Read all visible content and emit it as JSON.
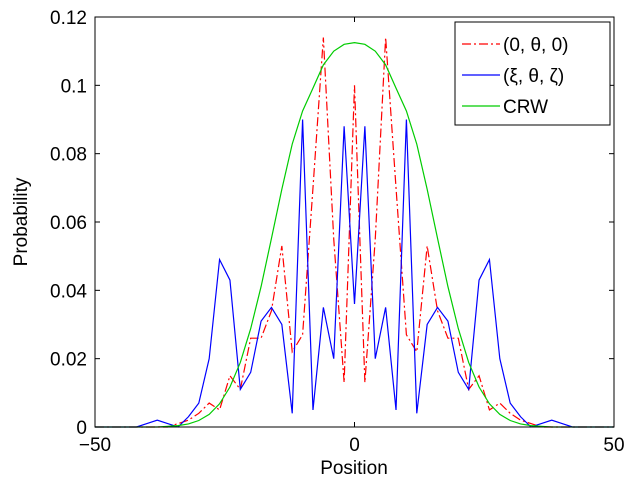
{
  "chart_data": {
    "type": "line",
    "xlabel": "Position",
    "ylabel": "Probability",
    "xlim": [
      -50,
      50
    ],
    "ylim": [
      0,
      0.12
    ],
    "x_ticks": [
      -50,
      0,
      50
    ],
    "x_tick_labels": [
      "−50",
      "0",
      "50"
    ],
    "y_ticks": [
      0,
      0.02,
      0.04,
      0.06,
      0.08,
      0.1,
      0.12
    ],
    "y_tick_labels": [
      "0",
      "0.02",
      "0.04",
      "0.06",
      "0.08",
      "0.1",
      "0.12"
    ],
    "grid": false,
    "legend_position": "top-right",
    "series": [
      {
        "name": "(0, θ, 0)",
        "color": "#ff0000",
        "style": "dash-dot",
        "x": [
          -50,
          -48,
          -46,
          -44,
          -42,
          -40,
          -38,
          -36,
          -34,
          -32,
          -30,
          -28,
          -26,
          -24,
          -22,
          -20,
          -18,
          -16,
          -14,
          -12,
          -10,
          -8,
          -6,
          -4,
          -2,
          0,
          2,
          4,
          6,
          8,
          10,
          12,
          14,
          16,
          18,
          20,
          22,
          24,
          26,
          28,
          30,
          32,
          34,
          36,
          38,
          40,
          42,
          44,
          46,
          48,
          50
        ],
        "y": [
          0,
          0,
          0,
          0,
          0,
          0,
          0,
          0,
          0.001,
          0.002,
          0.004,
          0.007,
          0.005,
          0.015,
          0.011,
          0.026,
          0.026,
          0.034,
          0.053,
          0.022,
          0.027,
          0.07,
          0.114,
          0.055,
          0.013,
          0.1,
          0.013,
          0.055,
          0.114,
          0.07,
          0.027,
          0.022,
          0.053,
          0.034,
          0.026,
          0.026,
          0.011,
          0.015,
          0.005,
          0.007,
          0.004,
          0.002,
          0.001,
          0,
          0,
          0,
          0,
          0,
          0,
          0,
          0
        ]
      },
      {
        "name": "(ξ, θ, ζ)",
        "color": "#0000ff",
        "style": "solid",
        "x": [
          -50,
          -48,
          -46,
          -44,
          -42,
          -40,
          -38,
          -36,
          -34,
          -32,
          -30,
          -28,
          -26,
          -24,
          -22,
          -20,
          -18,
          -16,
          -14,
          -12,
          -10,
          -8,
          -6,
          -4,
          -2,
          0,
          2,
          4,
          6,
          8,
          10,
          12,
          14,
          16,
          18,
          20,
          22,
          24,
          26,
          28,
          30,
          32,
          34,
          36,
          38,
          40,
          42,
          44,
          46,
          48,
          50
        ],
        "y": [
          0,
          0,
          0,
          0,
          0,
          0.001,
          0.002,
          0.001,
          0,
          0.003,
          0.007,
          0.02,
          0.049,
          0.043,
          0.011,
          0.016,
          0.031,
          0.035,
          0.03,
          0.004,
          0.09,
          0.005,
          0.035,
          0.02,
          0.088,
          0.036,
          0.088,
          0.02,
          0.035,
          0.005,
          0.09,
          0.004,
          0.03,
          0.035,
          0.031,
          0.016,
          0.011,
          0.043,
          0.049,
          0.02,
          0.007,
          0.003,
          0,
          0.001,
          0.002,
          0.001,
          0,
          0,
          0,
          0,
          0
        ]
      },
      {
        "name": "CRW",
        "color": "#00cc00",
        "style": "solid",
        "x": [
          -50,
          -48,
          -46,
          -44,
          -42,
          -40,
          -38,
          -36,
          -34,
          -32,
          -30,
          -28,
          -26,
          -24,
          -22,
          -20,
          -18,
          -16,
          -14,
          -12,
          -10,
          -8,
          -6,
          -4,
          -2,
          0,
          2,
          4,
          6,
          8,
          10,
          12,
          14,
          16,
          18,
          20,
          22,
          24,
          26,
          28,
          30,
          32,
          34,
          36,
          38,
          40,
          42,
          44,
          46,
          48,
          50
        ],
        "y": [
          0,
          0,
          0,
          0,
          0,
          0,
          0,
          0.0002,
          0.0004,
          0.0009,
          0.0019,
          0.0037,
          0.0068,
          0.0117,
          0.0189,
          0.0288,
          0.0411,
          0.0552,
          0.0696,
          0.0828,
          0.0925,
          0.0992,
          0.106,
          0.11,
          0.112,
          0.1125,
          0.112,
          0.11,
          0.106,
          0.0992,
          0.0925,
          0.0828,
          0.0696,
          0.0552,
          0.0411,
          0.0288,
          0.0189,
          0.0117,
          0.0068,
          0.0037,
          0.0019,
          0.0009,
          0.0004,
          0.0002,
          0,
          0,
          0,
          0,
          0,
          0,
          0
        ]
      }
    ]
  }
}
